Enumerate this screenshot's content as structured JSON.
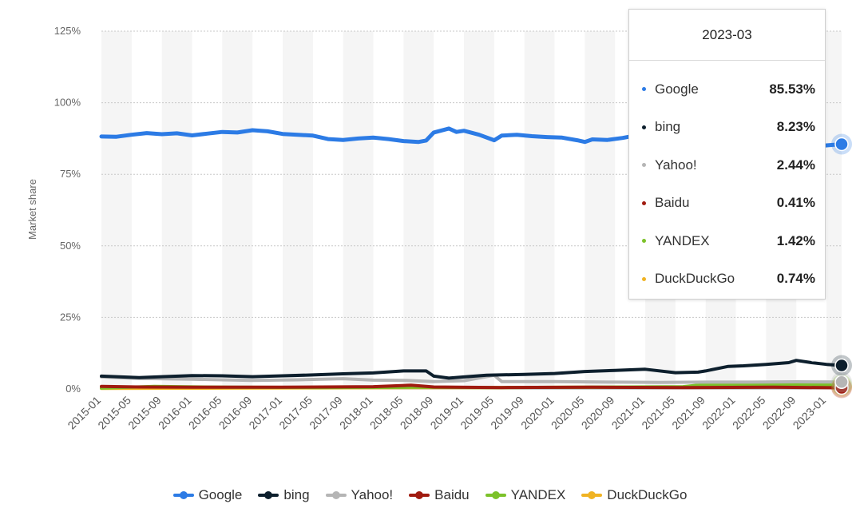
{
  "chart_data": {
    "type": "line",
    "ylabel": "Market share",
    "xlabel": "",
    "ylim": [
      0,
      125
    ],
    "yticks": [
      0,
      25,
      50,
      75,
      100,
      125
    ],
    "ytick_labels": [
      "0%",
      "25%",
      "50%",
      "75%",
      "100%",
      "125%"
    ],
    "grid": true,
    "legend_position": "bottom",
    "x_tick_labels": [
      "2015-01",
      "2015-05",
      "2015-09",
      "2016-01",
      "2016-05",
      "2016-09",
      "2017-01",
      "2017-05",
      "2017-09",
      "2018-01",
      "2018-05",
      "2018-09",
      "2019-01",
      "2019-05",
      "2019-09",
      "2020-01",
      "2020-05",
      "2020-09",
      "2021-01",
      "2021-05",
      "2021-09",
      "2022-01",
      "2022-05",
      "2022-09",
      "2023-01"
    ],
    "x_start": "2015-01",
    "x_end": "2023-03",
    "series": [
      {
        "name": "Google",
        "color": "#2c7be5",
        "points": [
          [
            "2015-01",
            88.2
          ],
          [
            "2015-03",
            88.1
          ],
          [
            "2015-05",
            88.8
          ],
          [
            "2015-07",
            89.4
          ],
          [
            "2015-09",
            89.0
          ],
          [
            "2015-11",
            89.3
          ],
          [
            "2016-01",
            88.6
          ],
          [
            "2016-03",
            89.2
          ],
          [
            "2016-05",
            89.8
          ],
          [
            "2016-07",
            89.6
          ],
          [
            "2016-09",
            90.4
          ],
          [
            "2016-11",
            90.0
          ],
          [
            "2017-01",
            89.1
          ],
          [
            "2017-03",
            88.8
          ],
          [
            "2017-05",
            88.5
          ],
          [
            "2017-07",
            87.3
          ],
          [
            "2017-09",
            87.0
          ],
          [
            "2017-11",
            87.5
          ],
          [
            "2018-01",
            87.8
          ],
          [
            "2018-03",
            87.3
          ],
          [
            "2018-05",
            86.6
          ],
          [
            "2018-07",
            86.3
          ],
          [
            "2018-08",
            86.8
          ],
          [
            "2018-09",
            89.6
          ],
          [
            "2018-11",
            91.0
          ],
          [
            "2018-12",
            89.8
          ],
          [
            "2019-01",
            90.2
          ],
          [
            "2019-03",
            88.8
          ],
          [
            "2019-05",
            86.9
          ],
          [
            "2019-06",
            88.5
          ],
          [
            "2019-08",
            88.8
          ],
          [
            "2019-10",
            88.3
          ],
          [
            "2019-12",
            88.0
          ],
          [
            "2020-02",
            87.8
          ],
          [
            "2020-04",
            86.9
          ],
          [
            "2020-05",
            86.3
          ],
          [
            "2020-06",
            87.2
          ],
          [
            "2020-08",
            87.0
          ],
          [
            "2020-10",
            87.7
          ],
          [
            "2020-11",
            88.2
          ],
          [
            "2022-12",
            84.8
          ],
          [
            "2023-01",
            85.1
          ],
          [
            "2023-03",
            85.53
          ]
        ]
      },
      {
        "name": "bing",
        "color": "#0d1f2d",
        "points": [
          [
            "2015-01",
            4.5
          ],
          [
            "2015-06",
            4.0
          ],
          [
            "2015-09",
            4.3
          ],
          [
            "2016-01",
            4.7
          ],
          [
            "2016-05",
            4.6
          ],
          [
            "2016-09",
            4.3
          ],
          [
            "2017-01",
            4.6
          ],
          [
            "2017-05",
            4.9
          ],
          [
            "2017-09",
            5.3
          ],
          [
            "2018-01",
            5.6
          ],
          [
            "2018-05",
            6.3
          ],
          [
            "2018-08",
            6.3
          ],
          [
            "2018-09",
            4.5
          ],
          [
            "2018-11",
            3.8
          ],
          [
            "2019-01",
            4.2
          ],
          [
            "2019-04",
            4.8
          ],
          [
            "2019-09",
            5.1
          ],
          [
            "2020-01",
            5.4
          ],
          [
            "2020-05",
            6.1
          ],
          [
            "2020-09",
            6.5
          ],
          [
            "2021-01",
            6.9
          ],
          [
            "2021-05",
            5.7
          ],
          [
            "2021-08",
            5.9
          ],
          [
            "2021-09",
            6.3
          ],
          [
            "2021-12",
            7.9
          ],
          [
            "2022-02",
            8.1
          ],
          [
            "2022-05",
            8.6
          ],
          [
            "2022-08",
            9.2
          ],
          [
            "2022-09",
            10.0
          ],
          [
            "2022-11",
            9.2
          ],
          [
            "2023-01",
            8.6
          ],
          [
            "2023-03",
            8.23
          ]
        ]
      },
      {
        "name": "Yahoo!",
        "color": "#b5b5b5",
        "points": [
          [
            "2015-01",
            4.2
          ],
          [
            "2015-06",
            3.7
          ],
          [
            "2016-01",
            3.4
          ],
          [
            "2016-09",
            3.0
          ],
          [
            "2017-03",
            3.2
          ],
          [
            "2017-09",
            3.6
          ],
          [
            "2018-01",
            3.1
          ],
          [
            "2018-05",
            3.0
          ],
          [
            "2018-09",
            2.6
          ],
          [
            "2019-01",
            2.9
          ],
          [
            "2019-05",
            4.8
          ],
          [
            "2019-06",
            2.6
          ],
          [
            "2020-01",
            2.6
          ],
          [
            "2020-09",
            2.4
          ],
          [
            "2021-03",
            2.3
          ],
          [
            "2021-09",
            2.4
          ],
          [
            "2022-03",
            2.4
          ],
          [
            "2022-09",
            2.5
          ],
          [
            "2023-03",
            2.44
          ]
        ]
      },
      {
        "name": "Baidu",
        "color": "#a01b10",
        "points": [
          [
            "2015-01",
            0.9
          ],
          [
            "2015-06",
            0.7
          ],
          [
            "2016-01",
            0.6
          ],
          [
            "2017-01",
            0.6
          ],
          [
            "2018-01",
            0.8
          ],
          [
            "2018-06",
            1.3
          ],
          [
            "2018-09",
            0.7
          ],
          [
            "2019-06",
            0.5
          ],
          [
            "2020-06",
            0.6
          ],
          [
            "2021-06",
            0.5
          ],
          [
            "2022-06",
            0.6
          ],
          [
            "2023-03",
            0.41
          ]
        ]
      },
      {
        "name": "YANDEX",
        "color": "#7cc22a",
        "points": [
          [
            "2015-01",
            0.3
          ],
          [
            "2015-08",
            0.9
          ],
          [
            "2016-06",
            0.6
          ],
          [
            "2017-06",
            0.5
          ],
          [
            "2018-06",
            0.6
          ],
          [
            "2019-06",
            0.5
          ],
          [
            "2020-06",
            0.6
          ],
          [
            "2021-06",
            0.8
          ],
          [
            "2021-09",
            1.6
          ],
          [
            "2022-06",
            1.4
          ],
          [
            "2023-03",
            1.42
          ]
        ]
      },
      {
        "name": "DuckDuckGo",
        "color": "#f0b323",
        "points": [
          [
            "2015-01",
            0.2
          ],
          [
            "2016-06",
            0.3
          ],
          [
            "2017-06",
            0.4
          ],
          [
            "2018-06",
            0.5
          ],
          [
            "2019-06",
            0.5
          ],
          [
            "2020-06",
            0.6
          ],
          [
            "2021-06",
            0.6
          ],
          [
            "2022-06",
            0.7
          ],
          [
            "2023-03",
            0.74
          ]
        ]
      }
    ]
  },
  "tooltip": {
    "title": "2023-03",
    "rows": [
      {
        "name": "Google",
        "value": "85.53%",
        "color": "#2c7be5"
      },
      {
        "name": "bing",
        "value": "8.23%",
        "color": "#0d1f2d"
      },
      {
        "name": "Yahoo!",
        "value": "2.44%",
        "color": "#b5b5b5"
      },
      {
        "name": "Baidu",
        "value": "0.41%",
        "color": "#a01b10"
      },
      {
        "name": "YANDEX",
        "value": "1.42%",
        "color": "#7cc22a"
      },
      {
        "name": "DuckDuckGo",
        "value": "0.74%",
        "color": "#f0b323"
      }
    ]
  },
  "legend": [
    {
      "name": "Google",
      "color": "#2c7be5"
    },
    {
      "name": "bing",
      "color": "#0d1f2d"
    },
    {
      "name": "Yahoo!",
      "color": "#b5b5b5"
    },
    {
      "name": "Baidu",
      "color": "#a01b10"
    },
    {
      "name": "YANDEX",
      "color": "#7cc22a"
    },
    {
      "name": "DuckDuckGo",
      "color": "#f0b323"
    }
  ]
}
